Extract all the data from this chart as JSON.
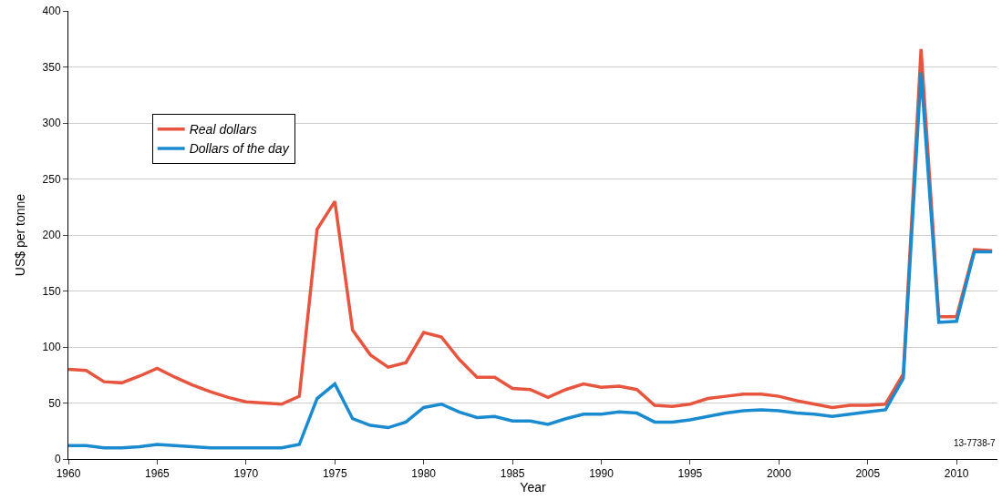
{
  "chart_data": {
    "type": "line",
    "xlabel": "Year",
    "ylabel": "US$ per tonne",
    "x": [
      1960,
      1961,
      1962,
      1963,
      1964,
      1965,
      1966,
      1967,
      1968,
      1969,
      1970,
      1971,
      1972,
      1973,
      1974,
      1975,
      1976,
      1977,
      1978,
      1979,
      1980,
      1981,
      1982,
      1983,
      1984,
      1985,
      1986,
      1987,
      1988,
      1989,
      1990,
      1991,
      1992,
      1993,
      1994,
      1995,
      1996,
      1997,
      1998,
      1999,
      2000,
      2001,
      2002,
      2003,
      2004,
      2005,
      2006,
      2007,
      2008,
      2009,
      2010,
      2011,
      2012
    ],
    "series": [
      {
        "name": "Real dollars",
        "color": "#e8553f",
        "values": [
          80,
          79,
          69,
          68,
          74,
          81,
          73,
          66,
          60,
          55,
          51,
          50,
          49,
          56,
          205,
          230,
          115,
          93,
          82,
          86,
          113,
          109,
          89,
          73,
          73,
          63,
          62,
          55,
          62,
          67,
          64,
          65,
          62,
          48,
          47,
          49,
          54,
          56,
          58,
          58,
          56,
          52,
          49,
          46,
          48,
          48,
          49,
          76,
          366,
          127,
          127,
          187,
          186
        ]
      },
      {
        "name": "Dollars of the day",
        "color": "#1a8bcf",
        "values": [
          12,
          12,
          10,
          10,
          11,
          13,
          12,
          11,
          10,
          10,
          10,
          10,
          10,
          13,
          54,
          67,
          36,
          30,
          28,
          33,
          46,
          49,
          42,
          37,
          38,
          34,
          34,
          31,
          36,
          40,
          40,
          42,
          41,
          33,
          33,
          35,
          38,
          41,
          43,
          44,
          43,
          41,
          40,
          38,
          40,
          42,
          44,
          72,
          345,
          122,
          123,
          185,
          185
        ]
      }
    ],
    "xlim": [
      1960,
      2012.3
    ],
    "ylim": [
      0,
      400
    ],
    "xticks": [
      1960,
      1965,
      1970,
      1975,
      1980,
      1985,
      1990,
      1995,
      2000,
      2005,
      2010
    ],
    "yticks": [
      0,
      50,
      100,
      150,
      200,
      250,
      300,
      350,
      400
    ],
    "grid": "y",
    "legend": "top left",
    "line_style": "solid",
    "marker": "none",
    "annotations": [
      "13-7738-7"
    ]
  }
}
